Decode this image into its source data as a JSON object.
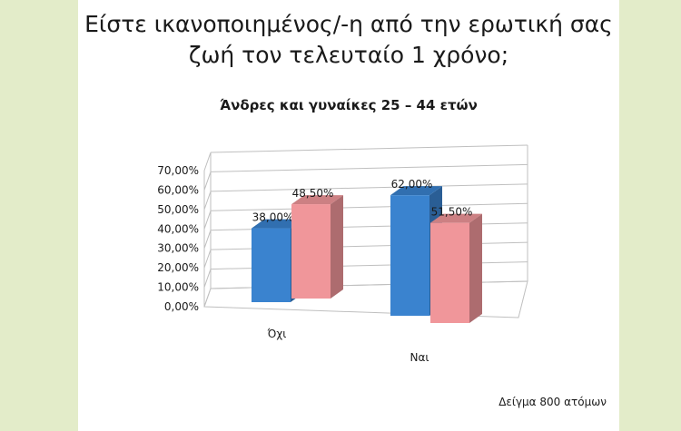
{
  "page": {
    "title_line1": "Είστε ικανοποιημένος/-η από την ερωτική σας",
    "title_line2": "ζωή τον τελευταίο 1 χρόνο;",
    "footnote": "Δείγμα 800 ατόμων"
  },
  "colors": {
    "background": "#e3ecc9",
    "series_blue": "#3a83cf",
    "series_pink": "#f0969a"
  },
  "chart_data": {
    "type": "bar",
    "title": "Άνδρες και γυναίκες 25 – 44 ετών",
    "categories": [
      "Όχι",
      "Ναι"
    ],
    "series": [
      {
        "values": [
          38.0,
          62.0
        ],
        "labels": [
          "38,00%",
          "62,00%"
        ],
        "color": "#3a83cf"
      },
      {
        "values": [
          48.5,
          51.5
        ],
        "labels": [
          "48,50%",
          "51,50%"
        ],
        "color": "#f0969a"
      }
    ],
    "ylim": [
      0,
      70
    ],
    "yticks": [
      "0,00%",
      "10,00%",
      "20,00%",
      "30,00%",
      "40,00%",
      "50,00%",
      "60,00%",
      "70,00%"
    ],
    "grid": true,
    "legend": "none",
    "style": "3d-clustered-column"
  }
}
